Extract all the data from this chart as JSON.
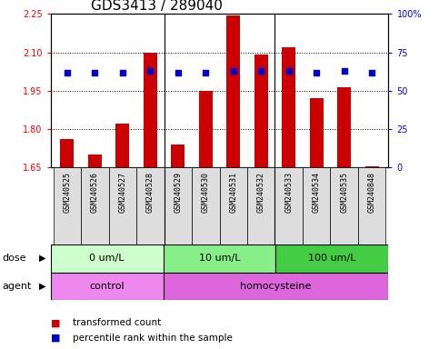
{
  "title": "GDS3413 / 289040",
  "samples": [
    "GSM240525",
    "GSM240526",
    "GSM240527",
    "GSM240528",
    "GSM240529",
    "GSM240530",
    "GSM240531",
    "GSM240532",
    "GSM240533",
    "GSM240534",
    "GSM240535",
    "GSM240848"
  ],
  "transformed_count": [
    1.76,
    1.7,
    1.82,
    2.1,
    1.74,
    1.95,
    2.245,
    2.09,
    2.12,
    1.92,
    1.965,
    1.655
  ],
  "percentile_rank": [
    62,
    62,
    62,
    63,
    62,
    62,
    63,
    63,
    63,
    62,
    63,
    62
  ],
  "ylim_left": [
    1.65,
    2.25
  ],
  "ylim_right": [
    0,
    100
  ],
  "yticks_left": [
    1.65,
    1.8,
    1.95,
    2.1,
    2.25
  ],
  "yticks_right": [
    0,
    25,
    50,
    75,
    100
  ],
  "ytick_labels_left": [
    "1.65",
    "1.80",
    "1.95",
    "2.10",
    "2.25"
  ],
  "ytick_labels_right": [
    "0",
    "25",
    "50",
    "75",
    "100%"
  ],
  "dose_groups": [
    {
      "label": "0 um/L",
      "start": 0,
      "end": 4,
      "color": "#ccffcc"
    },
    {
      "label": "10 um/L",
      "start": 4,
      "end": 8,
      "color": "#88ee88"
    },
    {
      "label": "100 um/L",
      "start": 8,
      "end": 12,
      "color": "#44cc44"
    }
  ],
  "agent_groups": [
    {
      "label": "control",
      "start": 0,
      "end": 4,
      "color": "#ee88ee"
    },
    {
      "label": "homocysteine",
      "start": 4,
      "end": 12,
      "color": "#dd66dd"
    }
  ],
  "group_boundaries": [
    3.5,
    7.5
  ],
  "bar_color": "#cc0000",
  "dot_color": "#0000cc",
  "bar_width": 0.5,
  "background_color": "#ffffff",
  "sample_bg_color": "#dddddd",
  "title_fontsize": 11,
  "tick_fontsize": 7,
  "label_fontsize": 8,
  "legend_fontsize": 7.5,
  "xtick_fontsize": 6
}
